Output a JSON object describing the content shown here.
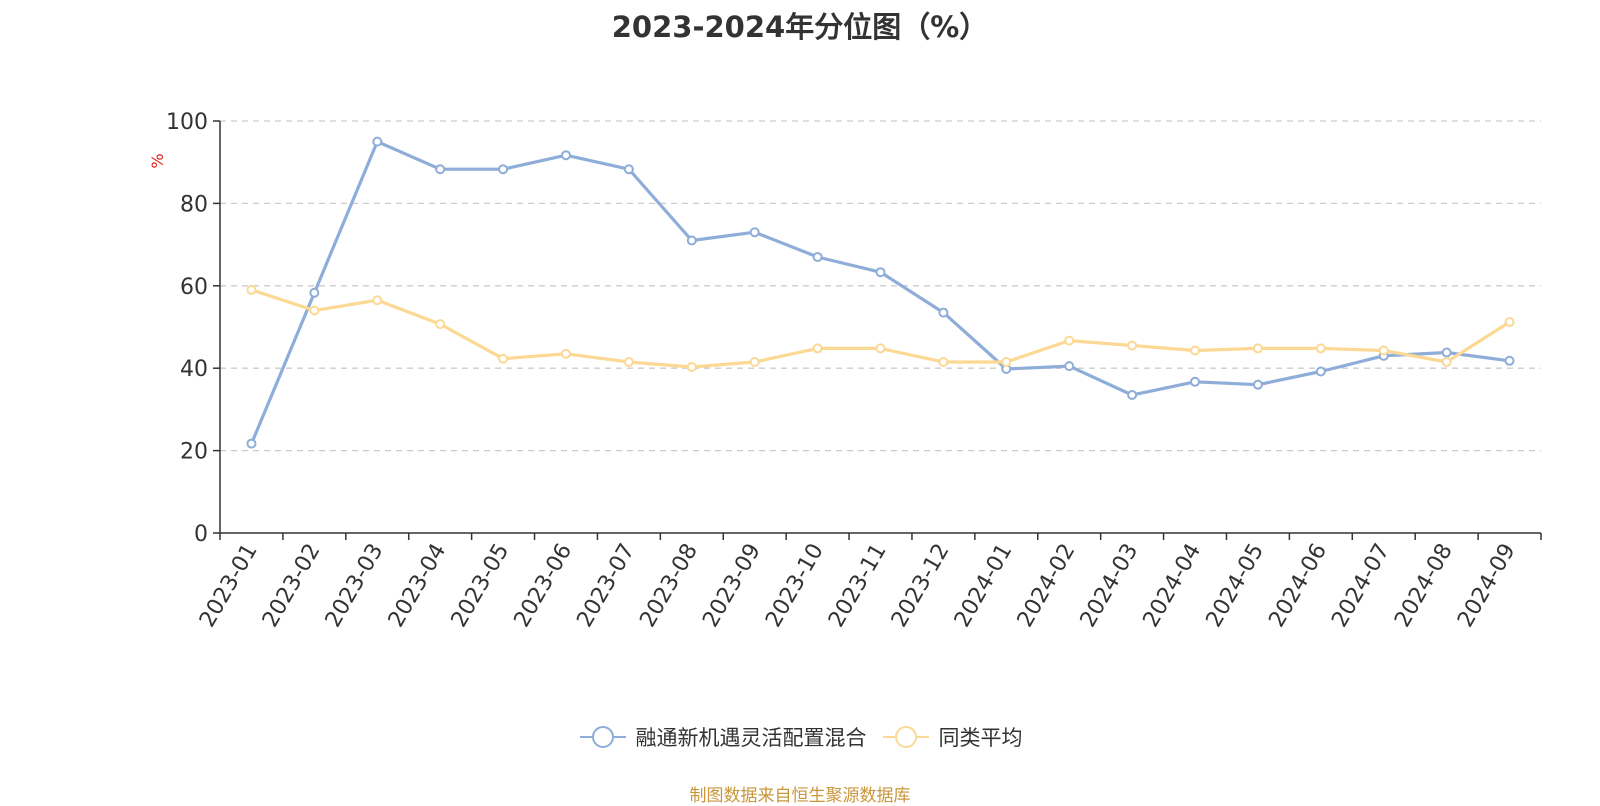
{
  "chart_data": {
    "type": "line",
    "title": "2023-2024年分位图（%）",
    "ylabel": "%",
    "xlabel": "",
    "ylim": [
      0,
      100
    ],
    "yticks": [
      0,
      20,
      40,
      60,
      80,
      100
    ],
    "grid": true,
    "legend_position": "bottom",
    "x": [
      "2023-01",
      "2023-02",
      "2023-03",
      "2023-04",
      "2023-05",
      "2023-06",
      "2023-07",
      "2023-08",
      "2023-09",
      "2023-10",
      "2023-11",
      "2023-12",
      "2024-01",
      "2024-02",
      "2024-03",
      "2024-04",
      "2024-05",
      "2024-06",
      "2024-07",
      "2024-08",
      "2024-09"
    ],
    "series": [
      {
        "name": "融通新机遇灵活配置混合",
        "color": "#8eadd8",
        "values": [
          21.7,
          58.3,
          95.0,
          88.3,
          88.3,
          91.7,
          88.3,
          71.0,
          73.0,
          67.0,
          63.3,
          53.5,
          39.8,
          40.5,
          33.5,
          36.7,
          36.0,
          39.2,
          43.0,
          43.8,
          41.8
        ]
      },
      {
        "name": "同类平均",
        "color": "#fbd994",
        "values": [
          59.0,
          54.0,
          56.5,
          50.7,
          42.3,
          43.5,
          41.5,
          40.3,
          41.5,
          44.8,
          44.8,
          41.5,
          41.5,
          46.7,
          45.5,
          44.3,
          44.8,
          44.8,
          44.3,
          41.5,
          51.2
        ]
      }
    ]
  },
  "source_text": "制图数据来自恒生聚源数据库"
}
